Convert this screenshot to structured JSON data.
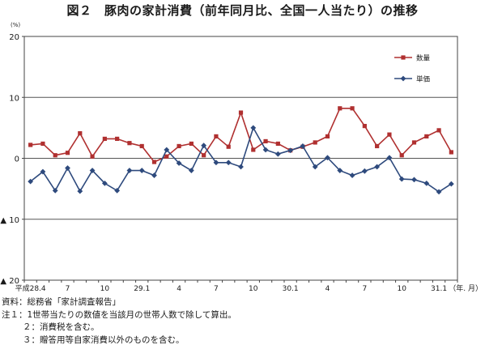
{
  "title": "図２　豚肉の家計消費（前年同月比、全国一人当たり）の推移",
  "chart_data": {
    "type": "line",
    "y_unit": "(%)",
    "x_unit": "（年. 月）",
    "ylim": [
      -20,
      20
    ],
    "y_ticks": [
      {
        "value": 20,
        "label": "20"
      },
      {
        "value": 10,
        "label": "10"
      },
      {
        "value": 0,
        "label": "0"
      },
      {
        "value": -10,
        "label": "▲ 10"
      },
      {
        "value": -20,
        "label": "▲ 20"
      }
    ],
    "x_tick_labels": [
      {
        "index": 0,
        "label": "平成28.4"
      },
      {
        "index": 3,
        "label": "7"
      },
      {
        "index": 6,
        "label": "10"
      },
      {
        "index": 9,
        "label": "29.1"
      },
      {
        "index": 12,
        "label": "4"
      },
      {
        "index": 15,
        "label": "7"
      },
      {
        "index": 18,
        "label": "10"
      },
      {
        "index": 21,
        "label": "30.1"
      },
      {
        "index": 24,
        "label": "4"
      },
      {
        "index": 27,
        "label": "7"
      },
      {
        "index": 30,
        "label": "10"
      },
      {
        "index": 33,
        "label": "31.1"
      }
    ],
    "grid": true,
    "legend_position": "top-right",
    "series": [
      {
        "name": "数量",
        "color": "#b03030",
        "marker": "square",
        "values": [
          2.2,
          2.4,
          0.5,
          0.9,
          4.1,
          0.3,
          3.2,
          3.2,
          2.5,
          2.0,
          -0.6,
          0.3,
          2.0,
          2.4,
          0.5,
          3.6,
          1.9,
          7.5,
          1.4,
          2.8,
          2.4,
          1.3,
          1.9,
          2.6,
          3.6,
          8.2,
          8.2,
          5.3,
          2.0,
          3.9,
          0.5,
          2.6,
          3.6,
          4.6,
          1.0
        ]
      },
      {
        "name": "単価",
        "color": "#2e4a7d",
        "marker": "diamond",
        "values": [
          -3.8,
          -2.2,
          -5.3,
          -1.6,
          -5.4,
          -2.0,
          -4.1,
          -5.3,
          -2.0,
          -2.0,
          -2.8,
          1.4,
          -0.8,
          -2.0,
          2.1,
          -0.7,
          -0.7,
          -1.4,
          5.0,
          1.4,
          0.7,
          1.3,
          2.0,
          -1.4,
          0.1,
          -2.0,
          -2.8,
          -2.1,
          -1.4,
          0.1,
          -3.4,
          -3.5,
          -4.1,
          -5.5,
          -4.2
        ]
      }
    ]
  },
  "notes": [
    "資料：総務省「家計調査報告」",
    "注１：1世帯当たりの数値を当該月の世帯人数で除して算出。",
    "２：消費税を含む。",
    "３：贈答用等自家消費以外のものを含む。"
  ]
}
